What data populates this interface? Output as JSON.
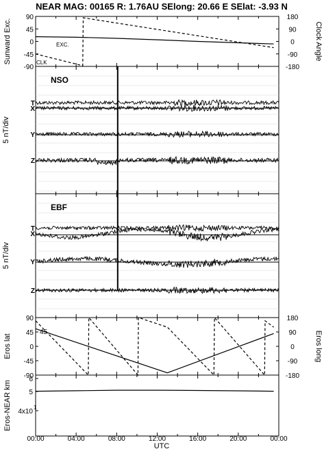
{
  "title": "NEAR MAG: 00165  R: 1.76AU  SElong:  20.66 E  SElat:  -3.93 N",
  "chart_data": [
    {
      "type": "line",
      "panel": "sunward",
      "ylabel": "Sunward Exc.",
      "ylabel_right": "Clock Angle",
      "ylim": [
        -90,
        90
      ],
      "ylim_right": [
        -180,
        180
      ],
      "y_ticks": [
        "90",
        "45",
        "0",
        "-45",
        "-90"
      ],
      "y_ticks_right": [
        "180",
        "90",
        "0",
        "-90",
        "-180"
      ],
      "annotations": [
        "EXC.",
        "CLK"
      ],
      "series": [
        {
          "name": "EXC.",
          "style": "solid",
          "x": [
            0,
            4,
            8,
            12,
            16,
            20,
            23.5
          ],
          "values": [
            17,
            15,
            11,
            6,
            0,
            -5,
            -9
          ]
        },
        {
          "name": "CLK",
          "style": "dashed",
          "x": [
            0,
            4.65,
            4.7,
            23.5
          ],
          "values": [
            -90,
            -175,
            170,
            -45
          ]
        }
      ]
    },
    {
      "type": "line",
      "panel": "NSO",
      "ylabel": "5 nT/div",
      "annotations": [
        "NSO"
      ],
      "trace_labels": [
        "T",
        "X",
        "Y",
        "Z"
      ],
      "spike_x": 8.1
    },
    {
      "type": "line",
      "panel": "EBF",
      "ylabel": "5 nT/div",
      "annotations": [
        "EBF"
      ],
      "trace_labels": [
        "T",
        "X",
        "Y",
        "Z"
      ],
      "spike_x": 8.1
    },
    {
      "type": "line",
      "panel": "eros",
      "ylabel": "Eros lat",
      "ylabel_right": "Eros long",
      "ylim": [
        -90,
        90
      ],
      "ylim_right": [
        -180,
        180
      ],
      "y_ticks": [
        "90",
        "45",
        "0",
        "-45",
        "-90"
      ],
      "y_ticks_right": [
        "180",
        "90",
        "0",
        "-90",
        "-180"
      ],
      "overlap_label": "45",
      "series": [
        {
          "name": "lat",
          "style": "solid",
          "x": [
            0,
            13,
            23.5
          ],
          "values": [
            55,
            -83,
            40
          ]
        },
        {
          "name": "long",
          "style": "dashed",
          "x": [
            0,
            5.2,
            5.25,
            10.1,
            10.15,
            13.0,
            17.6,
            17.65,
            22.6,
            22.65,
            23.5
          ],
          "values": [
            160,
            -180,
            180,
            -180,
            180,
            120,
            -180,
            180,
            -180,
            160,
            120
          ]
        }
      ]
    },
    {
      "type": "line",
      "panel": "range",
      "ylabel": "Eros-NEAR km",
      "y_ticks": [
        "6",
        "5",
        "4x10"
      ],
      "y_tick_sup": "1",
      "series": [
        {
          "name": "range",
          "style": "solid",
          "x": [
            0,
            4,
            8,
            12,
            16,
            20,
            23.5
          ],
          "values": [
            5.02,
            5.06,
            5.1,
            5.1,
            5.08,
            5.05,
            5.02
          ]
        }
      ]
    }
  ],
  "xaxis": {
    "label": "UTC",
    "ticks": [
      "00:00",
      "04:00",
      "08:00",
      "12:00",
      "16:00",
      "20:00",
      "00:00"
    ]
  }
}
